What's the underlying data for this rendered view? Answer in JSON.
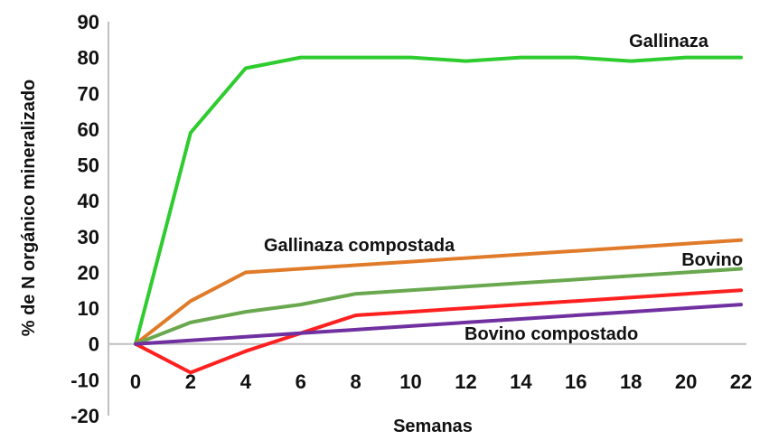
{
  "chart_data": {
    "type": "line",
    "title": "",
    "xlabel": "Semanas",
    "ylabel": "% de N orgánico mineralizado",
    "x": [
      0,
      2,
      4,
      6,
      8,
      10,
      12,
      14,
      16,
      18,
      20,
      22
    ],
    "ylim": [
      -20,
      90
    ],
    "yticks": [
      -20,
      -10,
      0,
      10,
      20,
      30,
      40,
      50,
      60,
      70,
      80,
      90
    ],
    "grid": false,
    "series": [
      {
        "name": "Gallinaza",
        "color": "#2ecc2e",
        "x": [
          0,
          2,
          4,
          6,
          8,
          10,
          12,
          14,
          16,
          18,
          20,
          22
        ],
        "values": [
          0,
          59,
          77,
          80,
          80,
          80,
          79,
          80,
          80,
          79,
          80,
          80
        ]
      },
      {
        "name": "Gallinaza compostada",
        "color": "#e07b2a",
        "x": [
          0,
          2,
          4,
          6,
          8,
          10,
          12,
          14,
          16,
          18,
          20,
          22
        ],
        "values": [
          0,
          12,
          20,
          21,
          22,
          23,
          24,
          25,
          26,
          27,
          28,
          29
        ]
      },
      {
        "name": "Bovino",
        "color": "#6aa84f",
        "x": [
          0,
          2,
          4,
          6,
          8,
          10,
          12,
          14,
          16,
          18,
          20,
          22
        ],
        "values": [
          0,
          6,
          9,
          11,
          14,
          15,
          16,
          17,
          18,
          19,
          20,
          21
        ]
      },
      {
        "name": "",
        "color": "#ff2020",
        "x": [
          0,
          2,
          4,
          6,
          8,
          10,
          12,
          14,
          16,
          18,
          20,
          22
        ],
        "values": [
          0,
          -8,
          -2,
          3,
          8,
          9,
          10,
          11,
          12,
          13,
          14,
          15
        ]
      },
      {
        "name": "Bovino compostado",
        "color": "#7030a0",
        "x": [
          0,
          2,
          4,
          6,
          8,
          10,
          12,
          14,
          16,
          18,
          20,
          22
        ],
        "values": [
          0,
          1,
          2,
          3,
          4,
          5,
          6,
          7,
          8,
          9,
          10,
          11
        ]
      }
    ]
  }
}
